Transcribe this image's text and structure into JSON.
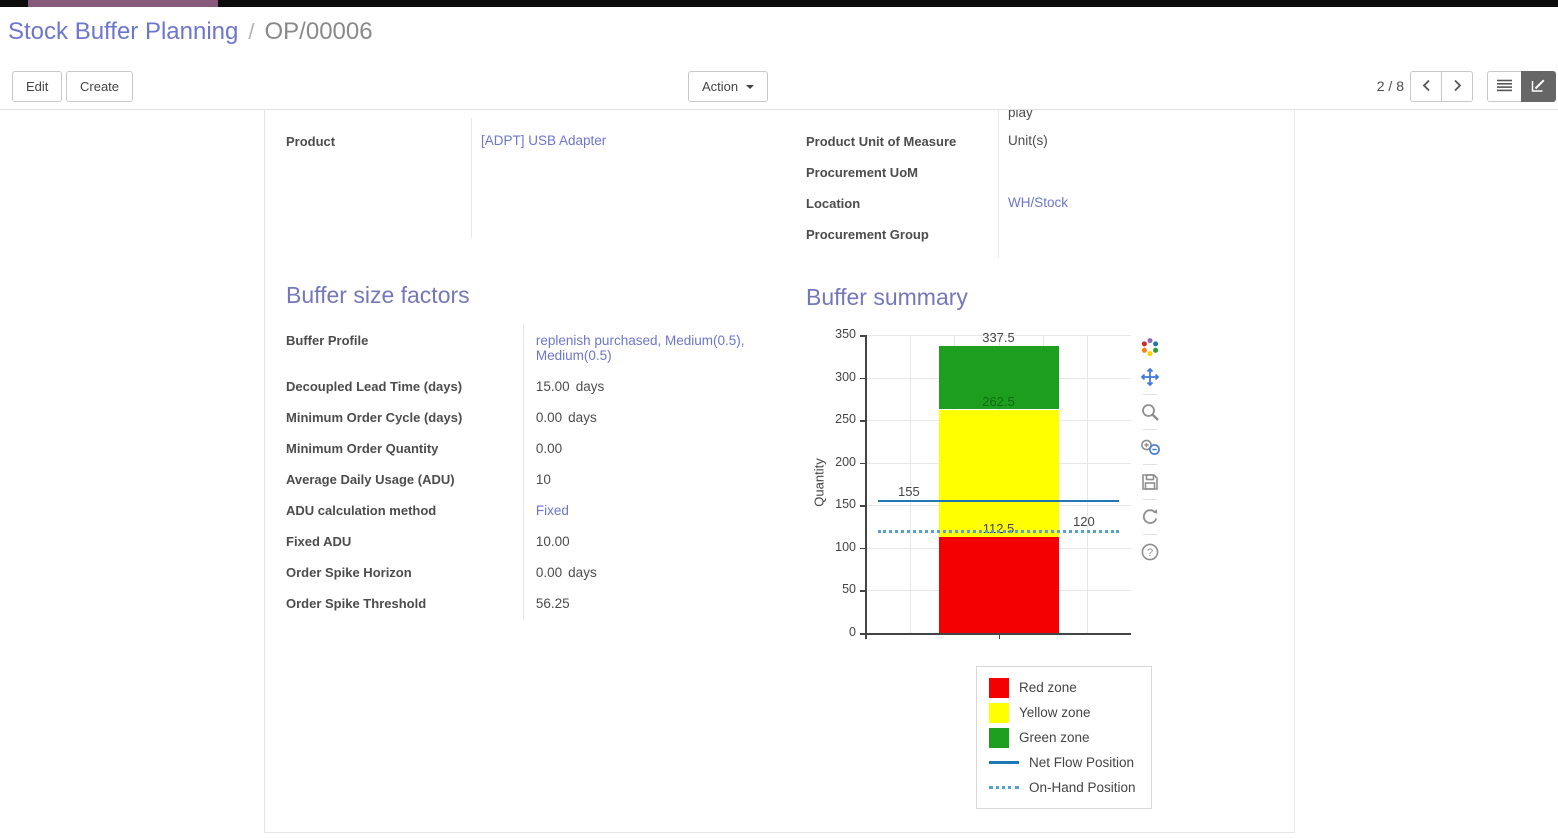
{
  "breadcrumb": {
    "parent": "Stock Buffer Planning",
    "separator": "/",
    "current": "OP/00006"
  },
  "control_panel": {
    "edit_label": "Edit",
    "create_label": "Create",
    "action_label": "Action",
    "pager": "2 / 8"
  },
  "record": {
    "top_partial_text": "play",
    "left_fields": [
      {
        "label": "Product",
        "value": "[ADPT] USB Adapter"
      }
    ],
    "right_fields": [
      {
        "label": "Product Unit of Measure",
        "value": "Unit(s)"
      },
      {
        "label": "Procurement UoM",
        "value": ""
      },
      {
        "label": "Location",
        "value": "WH/Stock"
      },
      {
        "label": "Procurement Group",
        "value": ""
      }
    ],
    "sections": {
      "factors_title": "Buffer size factors",
      "summary_title": "Buffer summary"
    },
    "factor_rows": [
      {
        "label": "Buffer Profile",
        "value": "replenish purchased, Medium(0.5), Medium(0.5)"
      },
      {
        "label": "Decoupled Lead Time (days)",
        "value": "15.00",
        "unit": "days"
      },
      {
        "label": "Minimum Order Cycle (days)",
        "value": "0.00",
        "unit": "days"
      },
      {
        "label": "Minimum Order Quantity",
        "value": "0.00"
      },
      {
        "label": "Average Daily Usage (ADU)",
        "value": "10"
      },
      {
        "label": "ADU calculation method",
        "value": "Fixed"
      },
      {
        "label": "Fixed ADU",
        "value": "10.00"
      },
      {
        "label": "Order Spike Horizon",
        "value": "0.00",
        "unit": "days"
      },
      {
        "label": "Order Spike Threshold",
        "value": "56.25"
      }
    ]
  },
  "chart_data": {
    "type": "bar",
    "stacked": true,
    "title": "",
    "xlabel": "",
    "ylabel": "Quantity",
    "ylim": [
      0,
      350
    ],
    "yticks": [
      0,
      50,
      100,
      150,
      200,
      250,
      300,
      350
    ],
    "categories": [
      ""
    ],
    "series": [
      {
        "name": "Red zone",
        "color": "#f40000",
        "values": [
          112.5
        ],
        "top_label": "112.5",
        "top_label_color": "#444444"
      },
      {
        "name": "Yellow zone",
        "color": "#ffff00",
        "values": [
          150
        ],
        "top_label": "262.5",
        "top_label_color": "#0f6d0f"
      },
      {
        "name": "Green zone",
        "color": "#1e9e1e",
        "values": [
          75
        ],
        "top_label": "337.5",
        "top_label_color": "#444444"
      }
    ],
    "lines": [
      {
        "name": "Net Flow Position",
        "y": 155,
        "label": "155",
        "label_side": "left",
        "style": "solid",
        "color": "#1f77b4"
      },
      {
        "name": "On-Hand Position",
        "y": 120,
        "label": "120",
        "label_side": "right",
        "style": "dotted",
        "color": "#56a0d3"
      }
    ],
    "legend": {
      "position": "bottom-right",
      "items": [
        {
          "label": "Red zone",
          "swatch": "square",
          "color": "#f40000"
        },
        {
          "label": "Yellow zone",
          "swatch": "square",
          "color": "#ffff00"
        },
        {
          "label": "Green zone",
          "swatch": "square",
          "color": "#1e9e1e"
        },
        {
          "label": "Net Flow Position",
          "swatch": "line",
          "color": "#1f77b4"
        },
        {
          "label": "On-Hand Position",
          "swatch": "dotted",
          "color": "#56a0d3"
        }
      ]
    },
    "modebar_icons": [
      "plotly-logo",
      "pan-icon",
      "zoom-icon",
      "zoom-in-out-icon",
      "save-icon",
      "reset-axes-icon",
      "help-icon"
    ]
  }
}
